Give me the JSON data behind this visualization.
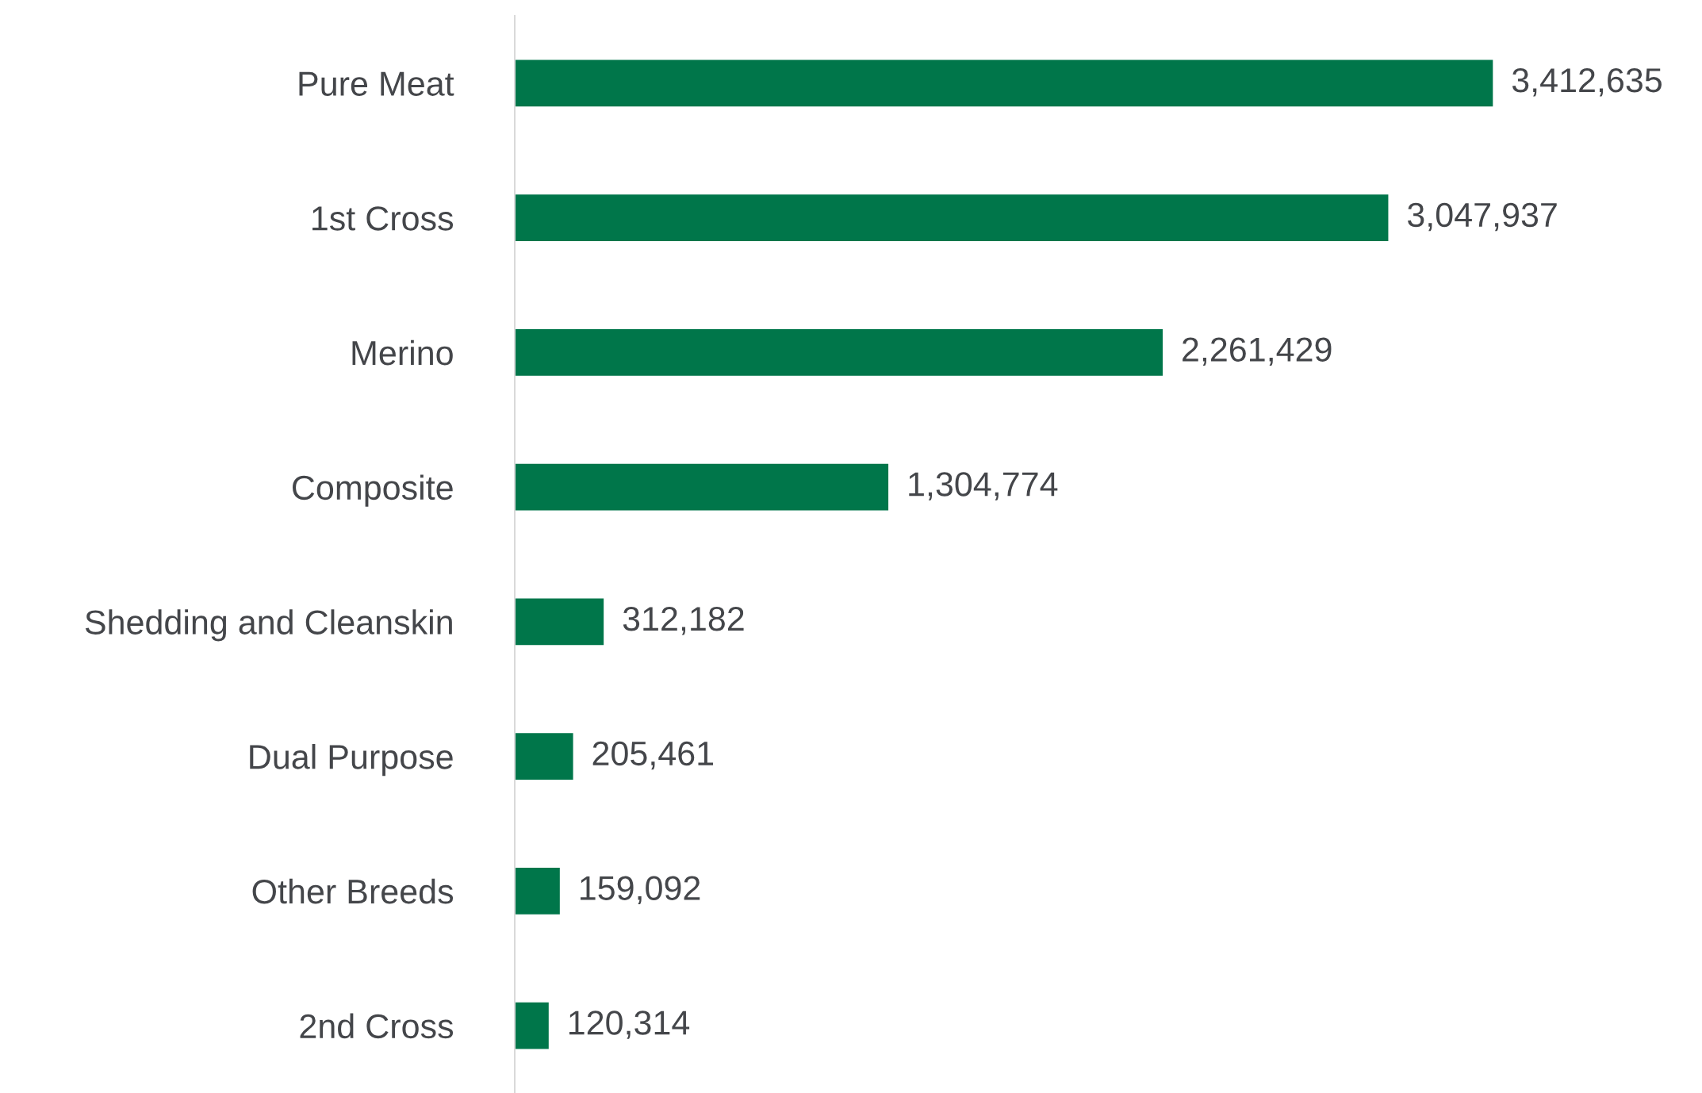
{
  "chart_data": {
    "type": "bar",
    "orientation": "horizontal",
    "value_labels": [
      "3,412,635",
      "3,047,937",
      "2,261,429",
      "1,304,774",
      "312,182",
      "205,461",
      "159,092",
      "120,314"
    ],
    "categories": [
      "Pure Meat",
      "1st Cross",
      "Merino",
      "Composite",
      "Shedding and Cleanskin",
      "Dual Purpose",
      "Other Breeds",
      "2nd Cross"
    ],
    "values": [
      3412635,
      3047937,
      2261429,
      1304774,
      312182,
      205461,
      159092,
      120314
    ],
    "color": "#00764a",
    "grid": false
  }
}
